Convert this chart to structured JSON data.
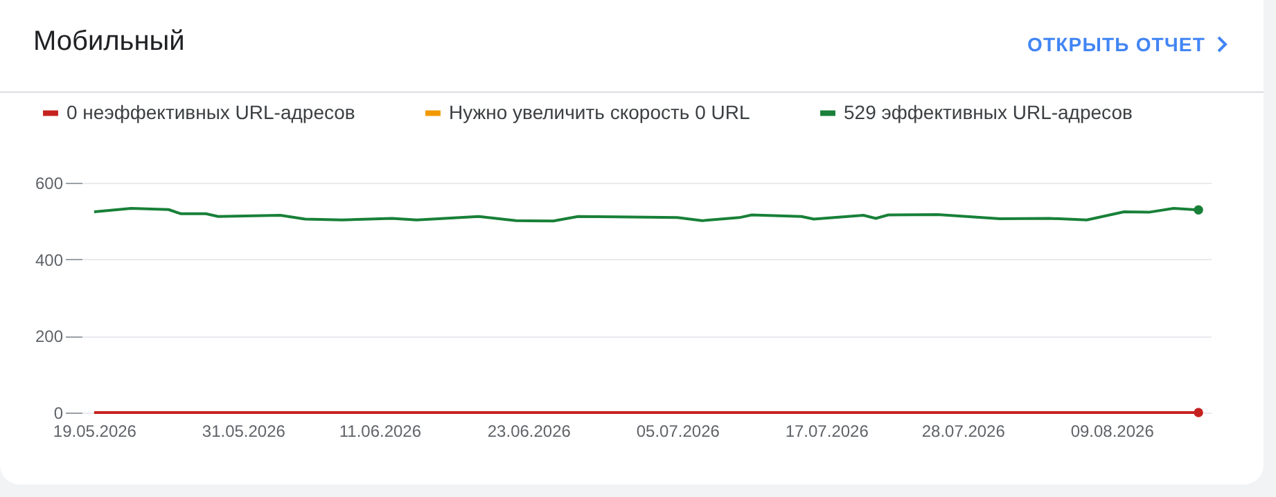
{
  "chart_data": {
    "type": "line",
    "title": "Мобильный",
    "annotations": [
      "ОТКРЫТЬ ОТЧЕТ"
    ],
    "legend": "top left",
    "grid": "y",
    "line_style": "solid",
    "xlim": [
      "2026-05-18",
      "2026-08-17"
    ],
    "xticks": [
      {
        "value": "2026-05-19",
        "label": "19.05.2026"
      },
      {
        "value": "2026-05-31",
        "label": "31.05.2026"
      },
      {
        "value": "2026-06-11",
        "label": "11.06.2026"
      },
      {
        "value": "2026-06-23",
        "label": "23.06.2026"
      },
      {
        "value": "2026-07-05",
        "label": "05.07.2026"
      },
      {
        "value": "2026-07-17",
        "label": "17.07.2026"
      },
      {
        "value": "2026-07-28",
        "label": "28.07.2026"
      },
      {
        "value": "2026-08-09",
        "label": "09.08.2026"
      }
    ],
    "ylim": [
      0,
      600
    ],
    "yticks": [
      0,
      200,
      400,
      600
    ],
    "series": [
      {
        "name": "0 неэффективных URL-адресов",
        "color": "#c5221f",
        "x": [
          "2026-05-19",
          "2026-08-16"
        ],
        "values": [
          0,
          0
        ]
      },
      {
        "name": "Нужно увеличить скорость 0 URL",
        "color": "#f29900"
      },
      {
        "name": "529 эффективных URL-адресов",
        "color": "#188038",
        "x": [
          "2026-05-19",
          "2026-05-22",
          "2026-05-25",
          "2026-05-26",
          "2026-05-28",
          "2026-05-29",
          "2026-06-03",
          "2026-06-05",
          "2026-06-08",
          "2026-06-12",
          "2026-06-14",
          "2026-06-19",
          "2026-06-22",
          "2026-06-25",
          "2026-06-27",
          "2026-06-30",
          "2026-07-05",
          "2026-07-07",
          "2026-07-10",
          "2026-07-11",
          "2026-07-15",
          "2026-07-16",
          "2026-07-20",
          "2026-07-21",
          "2026-07-22",
          "2026-07-26",
          "2026-07-31",
          "2026-08-04",
          "2026-08-07",
          "2026-08-10",
          "2026-08-12",
          "2026-08-14",
          "2026-08-16"
        ],
        "values": [
          524,
          533,
          530,
          519,
          519,
          512,
          515,
          505,
          503,
          507,
          503,
          512,
          501,
          500,
          512,
          511,
          509,
          501,
          509,
          516,
          512,
          505,
          515,
          507,
          516,
          517,
          506,
          507,
          503,
          524,
          523,
          533,
          529
        ]
      }
    ]
  }
}
